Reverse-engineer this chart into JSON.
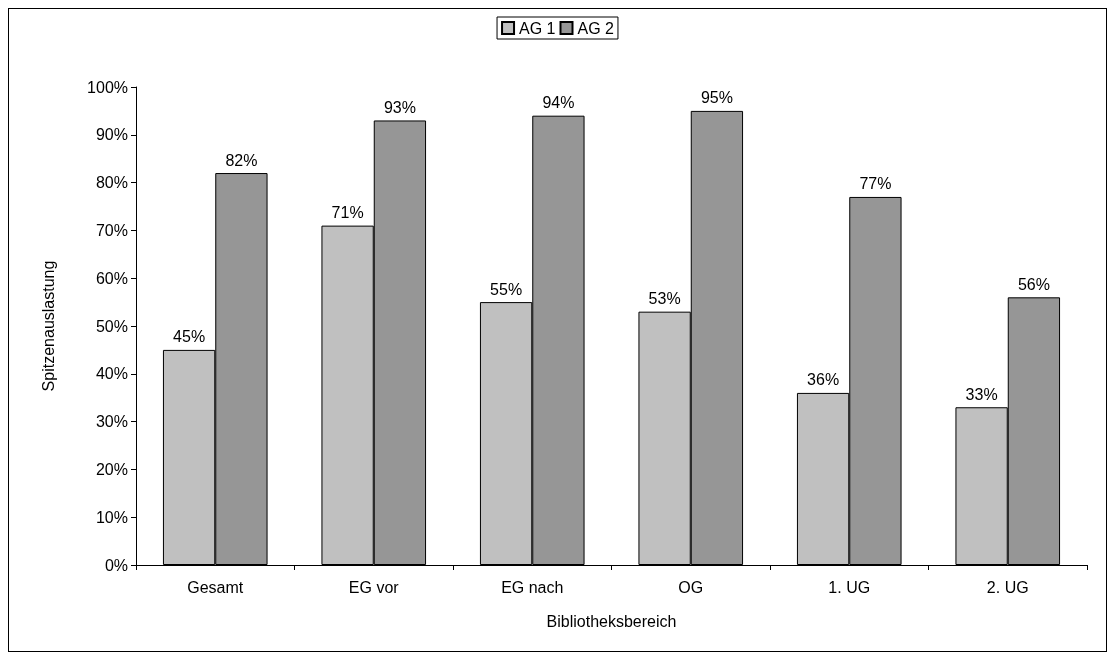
{
  "chart_data": {
    "type": "bar",
    "xlabel": "Bibliotheksbereich",
    "ylabel": "Spitzenauslastung",
    "categories": [
      "Gesamt",
      "EG vor",
      "EG nach",
      "OG",
      "1. UG",
      "2. UG"
    ],
    "series": [
      {
        "name": "AG 1",
        "color": "#c0c0c0",
        "values": [
          45,
          71,
          55,
          53,
          36,
          33
        ],
        "value_labels": [
          "45%",
          "71%",
          "55%",
          "53%",
          "36%",
          "33%"
        ]
      },
      {
        "name": "AG 2",
        "color": "#969696",
        "values": [
          82,
          93,
          94,
          95,
          77,
          56
        ],
        "value_labels": [
          "82%",
          "93%",
          "94%",
          "95%",
          "77%",
          "56%"
        ]
      }
    ],
    "ylim": [
      0,
      100
    ],
    "yticks": [
      {
        "value": 0,
        "label": "0%"
      },
      {
        "value": 10,
        "label": "10%"
      },
      {
        "value": 20,
        "label": "20%"
      },
      {
        "value": 30,
        "label": "30%"
      },
      {
        "value": 40,
        "label": "40%"
      },
      {
        "value": 50,
        "label": "50%"
      },
      {
        "value": 60,
        "label": "60%"
      },
      {
        "value": 70,
        "label": "70%"
      },
      {
        "value": 80,
        "label": "80%"
      },
      {
        "value": 90,
        "label": "90%"
      },
      {
        "value": 100,
        "label": "100%"
      }
    ],
    "grid": false,
    "legend": "top"
  }
}
